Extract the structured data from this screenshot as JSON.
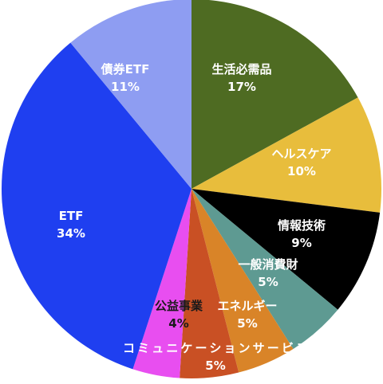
{
  "chart_data": {
    "type": "pie",
    "slices": [
      {
        "label": "生活必需品",
        "value": 17,
        "value_label": "17%",
        "color": "#4e6b22",
        "text_color": "#ffffff"
      },
      {
        "label": "ヘルスケア",
        "value": 10,
        "value_label": "10%",
        "color": "#e8bd3c",
        "text_color": "#ffffff"
      },
      {
        "label": "情報技術",
        "value": 9,
        "value_label": "9%",
        "color": "#000000",
        "text_color": "#ffffff"
      },
      {
        "label": "一般消費財",
        "value": 5,
        "value_label": "5%",
        "color": "#5e9a92",
        "text_color": "#ffffff"
      },
      {
        "label": "エネルギー",
        "value": 5,
        "value_label": "5%",
        "color": "#d98428",
        "text_color": "#ffffff"
      },
      {
        "label": "コミュニケーションサービス",
        "value": 5,
        "value_label": "5%",
        "color": "#c95024",
        "text_color": "#ffffff"
      },
      {
        "label": "公益事業",
        "value": 4,
        "value_label": "4%",
        "color": "#e84ef0",
        "text_color": "#1a1a1a"
      },
      {
        "label": "ETF",
        "value": 34,
        "value_label": "34%",
        "color": "#1f3ff0",
        "text_color": "#ffffff"
      },
      {
        "label": "債券ETF",
        "value": 11,
        "value_label": "11%",
        "color": "#8e9df2",
        "text_color": "#ffffff"
      }
    ]
  }
}
